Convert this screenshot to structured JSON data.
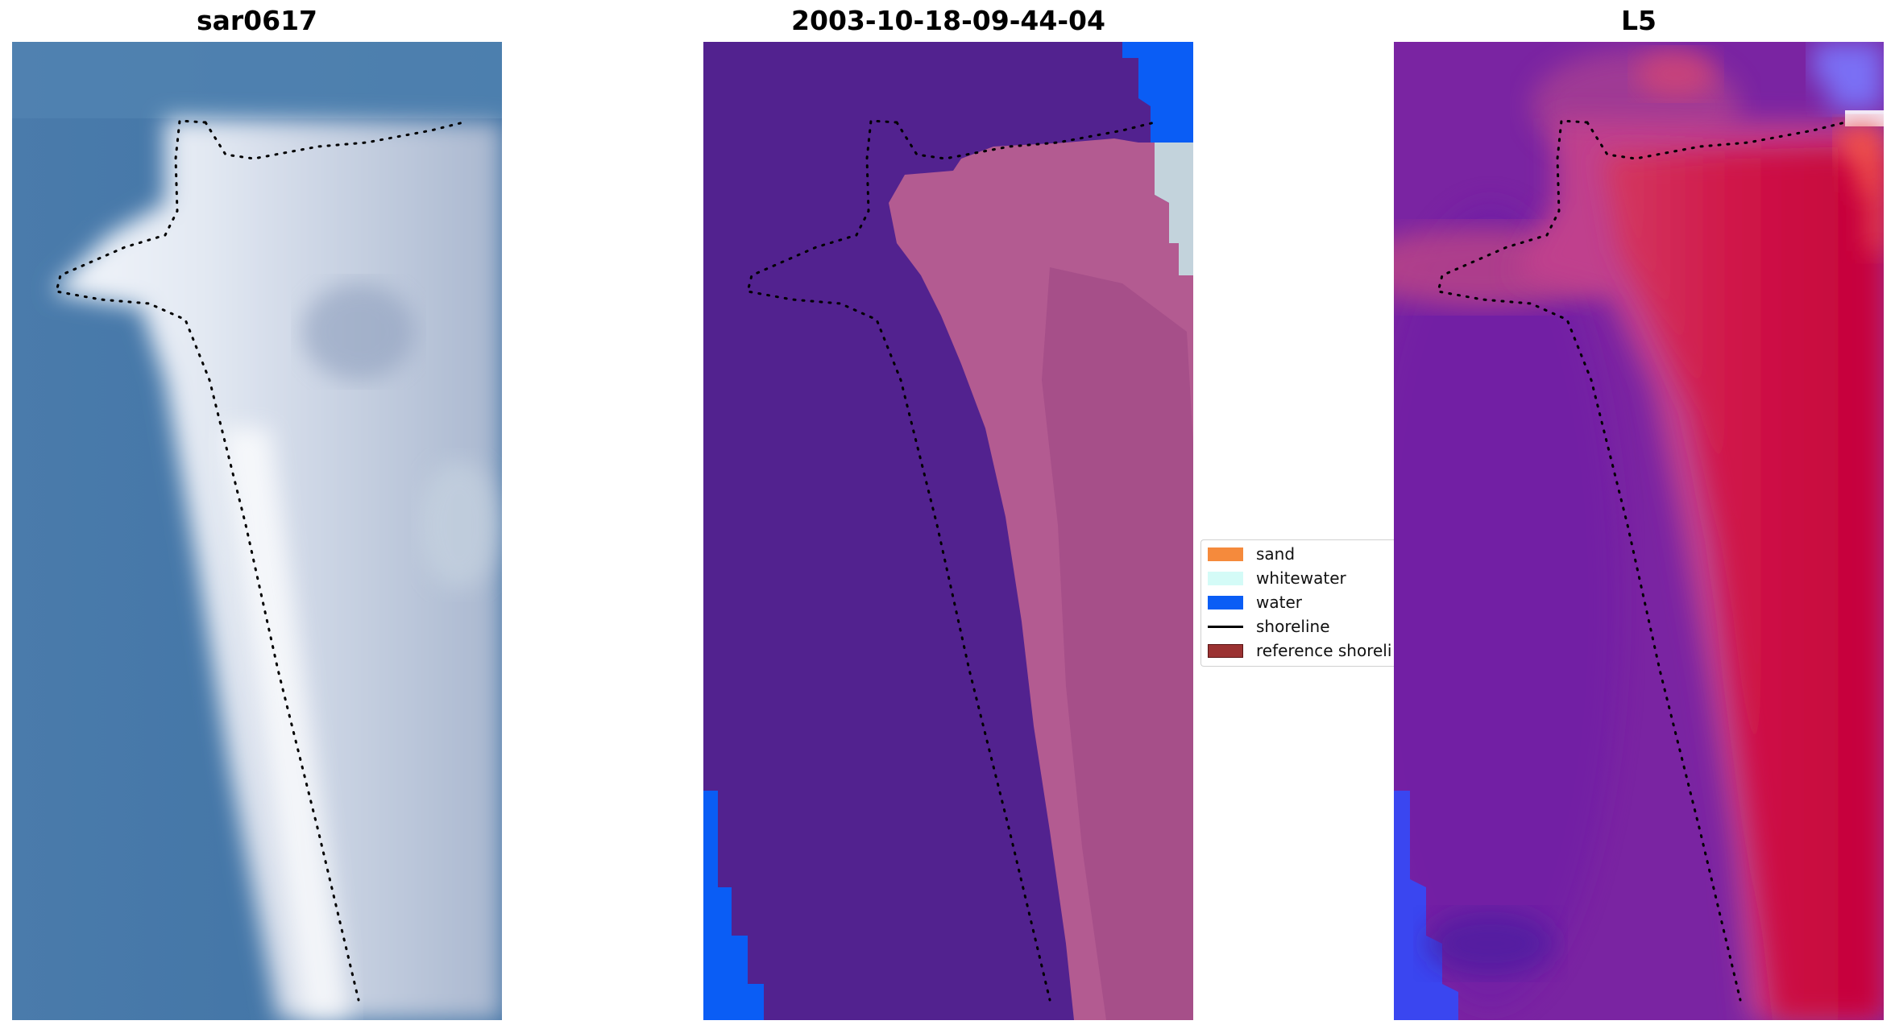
{
  "panels": [
    {
      "title": "sar0617"
    },
    {
      "title": "2003-10-18-09-44-04"
    },
    {
      "title": "L5"
    }
  ],
  "legend": {
    "items": [
      {
        "label": "sand",
        "type": "patch",
        "color": "#f58a3c"
      },
      {
        "label": "whitewater",
        "type": "patch",
        "color": "#d4fbf7"
      },
      {
        "label": "water",
        "type": "patch",
        "color": "#0a5df5"
      },
      {
        "label": "shoreline",
        "type": "line",
        "color": "#000000"
      },
      {
        "label": "reference shoreli",
        "type": "patch",
        "color": "#9b3232"
      }
    ]
  },
  "colors": {
    "rgb_sea": "#4676a6",
    "rgb_sand": "#dde3ee",
    "class_water": "#0a5df5",
    "class_land": "#52228f",
    "class_sand_overlay": "#b35b91",
    "class_whitewater": "#c3d3dc",
    "index_low": "#6a1aa6",
    "index_high": "#c8003a",
    "index_water": "#3a46f0"
  }
}
